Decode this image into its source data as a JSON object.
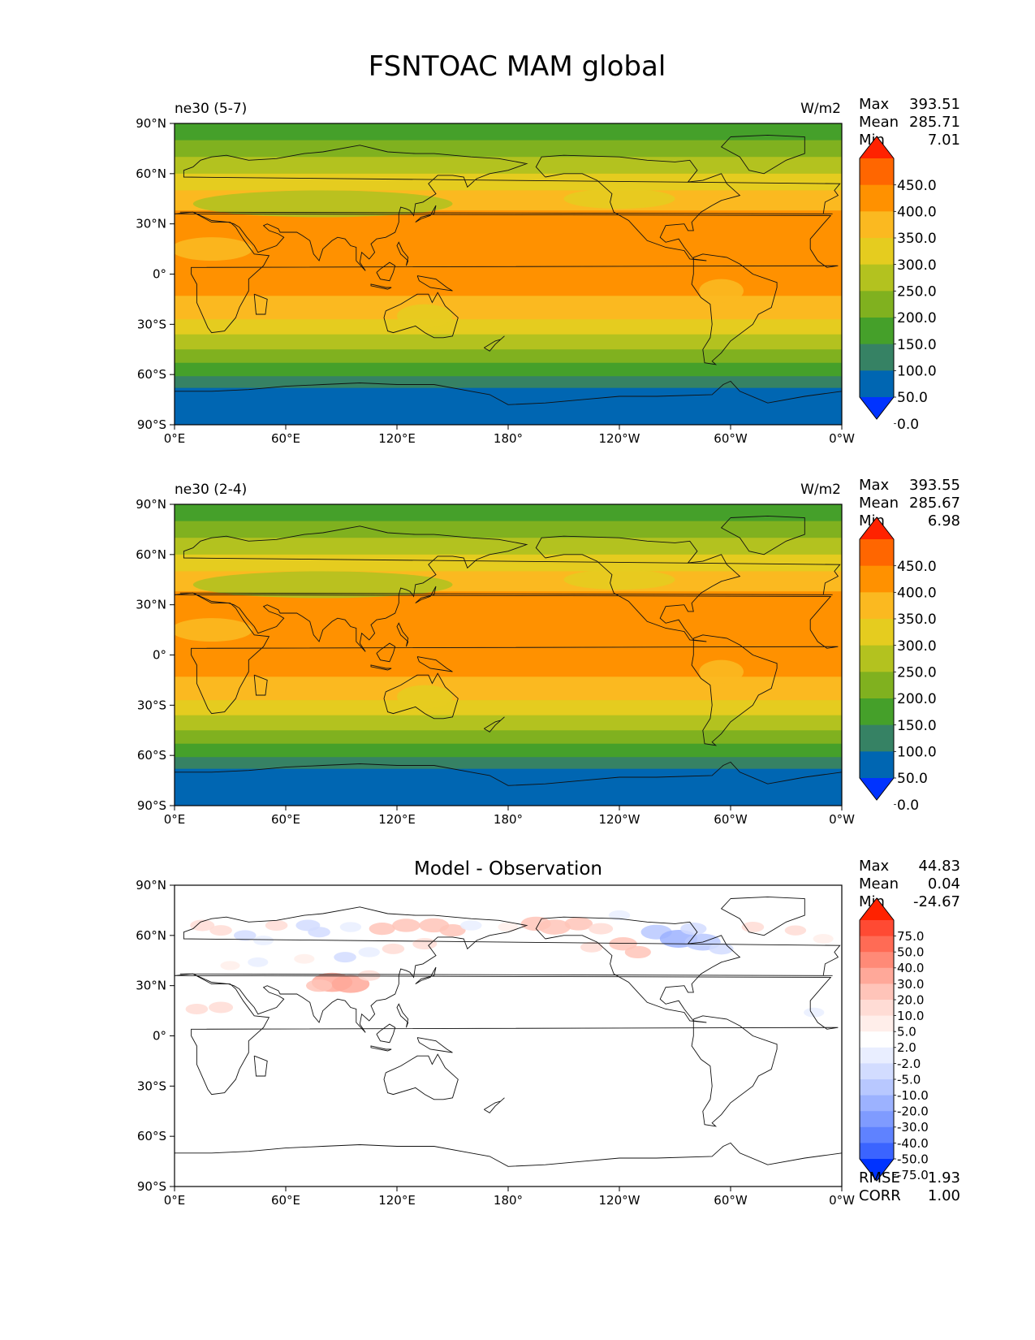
{
  "title": "FSNTOAC MAM global",
  "chart_data": [
    {
      "type": "heatmap",
      "left_title": "ne30 (5-7)",
      "units": "W/m2",
      "stats": [
        {
          "label": "Max",
          "value": "393.51"
        },
        {
          "label": "Mean",
          "value": "285.71"
        },
        {
          "label": "Min",
          "value": "7.01"
        }
      ],
      "levels": [
        "450.0",
        "400.0",
        "350.0",
        "300.0",
        "250.0",
        "200.0",
        "150.0",
        "100.0",
        "50.0",
        "0.0"
      ],
      "colors": [
        "#ff2200",
        "#ff6600",
        "#ff9100",
        "#fbb920",
        "#e5cc1f",
        "#b3c21f",
        "#80b11f",
        "#45a02a",
        "#368264",
        "#0066b2",
        "#0033ff"
      ],
      "bands": [
        {
          "lat0": 90,
          "lat1": 80,
          "value": 120
        },
        {
          "lat0": 80,
          "lat1": 70,
          "value": 170
        },
        {
          "lat0": 70,
          "lat1": 60,
          "value": 230
        },
        {
          "lat0": 60,
          "lat1": 50,
          "value": 285
        },
        {
          "lat0": 50,
          "lat1": 38,
          "value": 330
        },
        {
          "lat0": 38,
          "lat1": -13,
          "value": 375
        },
        {
          "lat0": -13,
          "lat1": -27,
          "value": 330
        },
        {
          "lat0": -27,
          "lat1": -36,
          "value": 280
        },
        {
          "lat0": -36,
          "lat1": -45,
          "value": 230
        },
        {
          "lat0": -45,
          "lat1": -53,
          "value": 180
        },
        {
          "lat0": -53,
          "lat1": -61,
          "value": 130
        },
        {
          "lat0": -61,
          "lat1": -68,
          "value": 80
        },
        {
          "lat0": -68,
          "lat1": -90,
          "value": 30
        }
      ]
    },
    {
      "type": "heatmap",
      "left_title": "ne30 (2-4)",
      "units": "W/m2",
      "stats": [
        {
          "label": "Max",
          "value": "393.55"
        },
        {
          "label": "Mean",
          "value": "285.67"
        },
        {
          "label": "Min",
          "value": "6.98"
        }
      ],
      "levels": [
        "450.0",
        "400.0",
        "350.0",
        "300.0",
        "250.0",
        "200.0",
        "150.0",
        "100.0",
        "50.0",
        "0.0"
      ],
      "colors": [
        "#ff2200",
        "#ff6600",
        "#ff9100",
        "#fbb920",
        "#e5cc1f",
        "#b3c21f",
        "#80b11f",
        "#45a02a",
        "#368264",
        "#0066b2",
        "#0033ff"
      ],
      "bands": [
        {
          "lat0": 90,
          "lat1": 80,
          "value": 120
        },
        {
          "lat0": 80,
          "lat1": 70,
          "value": 170
        },
        {
          "lat0": 70,
          "lat1": 60,
          "value": 230
        },
        {
          "lat0": 60,
          "lat1": 50,
          "value": 285
        },
        {
          "lat0": 50,
          "lat1": 38,
          "value": 330
        },
        {
          "lat0": 38,
          "lat1": -13,
          "value": 375
        },
        {
          "lat0": -13,
          "lat1": -27,
          "value": 330
        },
        {
          "lat0": -27,
          "lat1": -36,
          "value": 280
        },
        {
          "lat0": -36,
          "lat1": -45,
          "value": 230
        },
        {
          "lat0": -45,
          "lat1": -53,
          "value": 180
        },
        {
          "lat0": -53,
          "lat1": -61,
          "value": 130
        },
        {
          "lat0": -61,
          "lat1": -68,
          "value": 80
        },
        {
          "lat0": -68,
          "lat1": -90,
          "value": 30
        }
      ]
    },
    {
      "type": "heatmap",
      "center_title": "Model - Observation",
      "stats": [
        {
          "label": "Max",
          "value": "44.83"
        },
        {
          "label": "Mean",
          "value": "0.04"
        },
        {
          "label": "Min",
          "value": "-24.67"
        }
      ],
      "levels": [
        "75.0",
        "50.0",
        "40.0",
        "30.0",
        "20.0",
        "10.0",
        "5.0",
        "2.0",
        "-2.0",
        "-5.0",
        "-10.0",
        "-20.0",
        "-30.0",
        "-40.0",
        "-50.0",
        "-75.0"
      ],
      "colors": [
        "#ff2200",
        "#ff4a33",
        "#ff6b55",
        "#ff8a77",
        "#ffa899",
        "#ffc4b9",
        "#ffdcd5",
        "#ffeeea",
        "#ffffff",
        "#e9eeff",
        "#d2dcff",
        "#b8c8ff",
        "#9cb2ff",
        "#7f9bff",
        "#5f82ff",
        "#3b64ff",
        "#0033ff"
      ],
      "metrics": [
        {
          "label": "RMSE",
          "value": "1.93"
        },
        {
          "label": "CORR",
          "value": "1.00"
        }
      ],
      "anomalies": [
        {
          "lon": 15,
          "lat": 66,
          "value": 8
        },
        {
          "lon": 25,
          "lat": 63,
          "value": 6
        },
        {
          "lon": 38,
          "lat": 60,
          "value": -6
        },
        {
          "lon": 48,
          "lat": 57,
          "value": -4
        },
        {
          "lon": 55,
          "lat": 66,
          "value": 6
        },
        {
          "lon": 72,
          "lat": 66,
          "value": -8
        },
        {
          "lon": 78,
          "lat": 62,
          "value": -6
        },
        {
          "lon": 95,
          "lat": 65,
          "value": -5
        },
        {
          "lon": 112,
          "lat": 64,
          "value": 10
        },
        {
          "lon": 125,
          "lat": 66,
          "value": 12
        },
        {
          "lon": 140,
          "lat": 66,
          "value": 14
        },
        {
          "lon": 150,
          "lat": 63,
          "value": 10
        },
        {
          "lon": 135,
          "lat": 55,
          "value": 8
        },
        {
          "lon": 118,
          "lat": 52,
          "value": 6
        },
        {
          "lon": 105,
          "lat": 50,
          "value": -5
        },
        {
          "lon": 92,
          "lat": 47,
          "value": -6
        },
        {
          "lon": 70,
          "lat": 46,
          "value": 4
        },
        {
          "lon": 45,
          "lat": 44,
          "value": -4
        },
        {
          "lon": 30,
          "lat": 42,
          "value": 3
        },
        {
          "lon": 85,
          "lat": 32,
          "value": 28
        },
        {
          "lon": 95,
          "lat": 31,
          "value": 22
        },
        {
          "lon": 78,
          "lat": 30,
          "value": 10
        },
        {
          "lon": 105,
          "lat": 36,
          "value": 6
        },
        {
          "lon": 25,
          "lat": 17,
          "value": 8
        },
        {
          "lon": 12,
          "lat": 16,
          "value": 6
        },
        {
          "lon": 160,
          "lat": 66,
          "value": -5
        },
        {
          "lon": 180,
          "lat": 65,
          "value": 4
        },
        {
          "lon": 195,
          "lat": 67,
          "value": 14
        },
        {
          "lon": 205,
          "lat": 65,
          "value": 16
        },
        {
          "lon": 218,
          "lat": 67,
          "value": 12
        },
        {
          "lon": 230,
          "lat": 64,
          "value": 8
        },
        {
          "lon": 242,
          "lat": 55,
          "value": 12
        },
        {
          "lon": 250,
          "lat": 50,
          "value": 10
        },
        {
          "lon": 225,
          "lat": 53,
          "value": 6
        },
        {
          "lon": 260,
          "lat": 62,
          "value": -15
        },
        {
          "lon": 272,
          "lat": 58,
          "value": -22
        },
        {
          "lon": 285,
          "lat": 56,
          "value": -20
        },
        {
          "lon": 280,
          "lat": 64,
          "value": -10
        },
        {
          "lon": 295,
          "lat": 52,
          "value": -8
        },
        {
          "lon": 240,
          "lat": 72,
          "value": -5
        },
        {
          "lon": 312,
          "lat": 65,
          "value": 6
        },
        {
          "lon": 335,
          "lat": 63,
          "value": 5
        },
        {
          "lon": 350,
          "lat": 58,
          "value": 4
        },
        {
          "lon": 345,
          "lat": 14,
          "value": -4
        }
      ]
    }
  ],
  "axes": {
    "x_ticks": [
      "0°E",
      "60°E",
      "120°E",
      "180°",
      "120°W",
      "60°W",
      "0°W"
    ],
    "y_ticks": [
      "90°N",
      "60°N",
      "30°N",
      "0°",
      "30°S",
      "60°S",
      "90°S"
    ]
  }
}
